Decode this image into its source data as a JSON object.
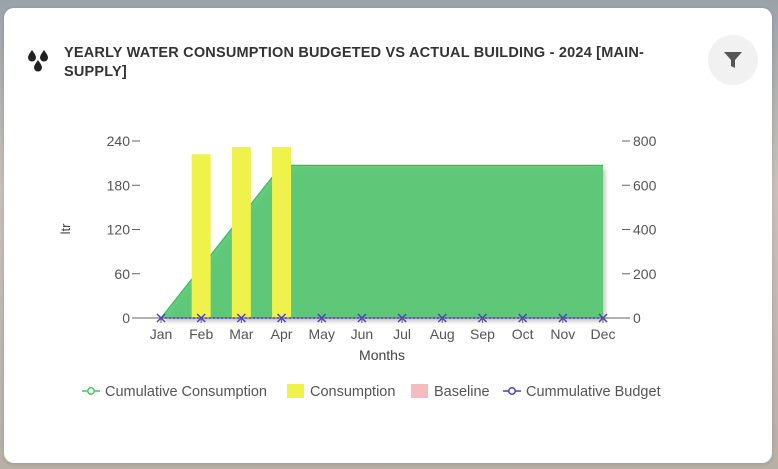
{
  "header": {
    "title": "YEARLY WATER CONSUMPTION BUDGETED VS ACTUAL BUILDING - 2024 [MAIN-SUPPLY]",
    "icon": "water-drops-icon",
    "filter_icon": "filter-icon"
  },
  "colors": {
    "cumulative_consumption": "#4cc46a",
    "consumption": "#eef24a",
    "baseline": "#f4bcbc",
    "cumulative_budget": "#4b3fc4"
  },
  "chart_data": {
    "type": "bar",
    "categories": [
      "Jan",
      "Feb",
      "Mar",
      "Apr",
      "May",
      "Jun",
      "Jul",
      "Aug",
      "Sep",
      "Oct",
      "Nov",
      "Dec"
    ],
    "xlabel": "Months",
    "ylabel": "ltr",
    "ylim": [
      0,
      240
    ],
    "y_ticks": [
      0,
      60,
      120,
      180,
      240
    ],
    "y2lim": [
      0,
      800
    ],
    "y2_ticks": [
      0,
      200,
      400,
      600,
      800
    ],
    "grid": false,
    "legend_position": "bottom",
    "series": [
      {
        "name": "Cumulative Consumption",
        "type": "area",
        "axis": "right",
        "values": [
          0,
          230,
          460,
          690,
          690,
          690,
          690,
          690,
          690,
          690,
          690,
          690
        ]
      },
      {
        "name": "Consumption",
        "type": "bar",
        "axis": "left",
        "values": [
          0,
          222,
          232,
          232,
          0,
          0,
          0,
          0,
          0,
          0,
          0,
          0
        ]
      },
      {
        "name": "Baseline",
        "type": "bar",
        "axis": "left",
        "values": [
          0,
          0,
          0,
          0,
          0,
          0,
          0,
          0,
          0,
          0,
          0,
          0
        ]
      },
      {
        "name": "Cummulative Budget",
        "type": "line",
        "axis": "right",
        "values": [
          0,
          0,
          0,
          0,
          0,
          0,
          0,
          0,
          0,
          0,
          0,
          0
        ]
      }
    ]
  }
}
